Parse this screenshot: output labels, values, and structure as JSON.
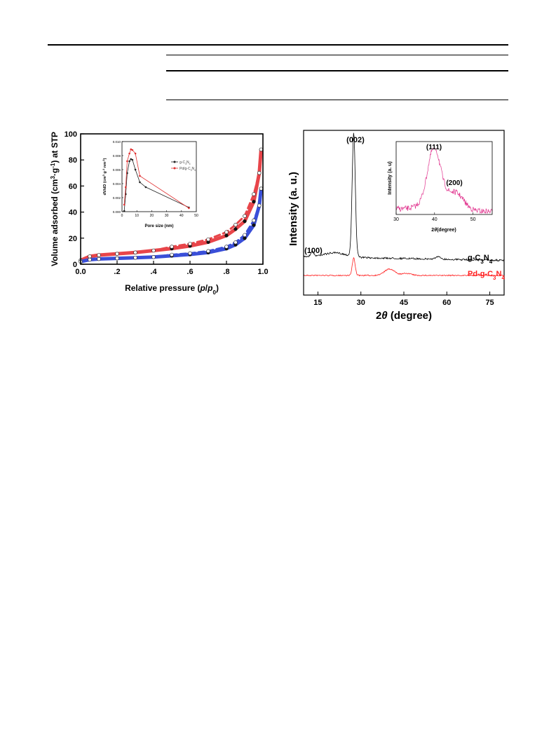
{
  "chart_data": [
    {
      "type": "line",
      "ylabel": "Volume adsorbed (cm3·g-1) at STP",
      "xlabel": "Relative pressure (p/p0)",
      "xlim": [
        0.0,
        1.0
      ],
      "ylim": [
        0,
        100
      ],
      "xticks": [
        "0.0",
        ".2",
        ".4",
        ".6",
        ".8",
        "1.0"
      ],
      "yticks": [
        "0",
        "20",
        "40",
        "60",
        "80",
        "100"
      ],
      "grid": false,
      "series": [
        {
          "name": "",
          "color": "#e8454a",
          "x": [
            0.0,
            0.05,
            0.1,
            0.2,
            0.3,
            0.4,
            0.5,
            0.6,
            0.7,
            0.8,
            0.85,
            0.9,
            0.95,
            0.98,
            0.99
          ],
          "y": [
            3,
            6,
            7,
            8,
            9,
            10.5,
            12,
            14,
            17,
            22,
            27,
            33,
            48,
            70,
            88
          ]
        },
        {
          "name": "",
          "color": "#3a4fd8",
          "x": [
            0.0,
            0.05,
            0.1,
            0.2,
            0.3,
            0.4,
            0.5,
            0.6,
            0.7,
            0.8,
            0.85,
            0.9,
            0.95,
            0.98,
            0.99
          ],
          "y": [
            2,
            3.5,
            4,
            4.5,
            5,
            5.5,
            6.5,
            7.5,
            9,
            12,
            15,
            20,
            30,
            45,
            58
          ]
        }
      ]
    },
    {
      "type": "line",
      "ylabel": "dV/dD (cm3 g-1 nm-1)",
      "xlabel": "Pore size (nm)",
      "xlim": [
        0,
        50
      ],
      "ylim": [
        0.0,
        0.01
      ],
      "xticks": [
        "0",
        "10",
        "20",
        "30",
        "40",
        "50"
      ],
      "yticks": [
        "0.000",
        "0.002",
        "0.004",
        "0.006",
        "0.008",
        "0.010"
      ],
      "legend_position": "right",
      "series": [
        {
          "name": "g-C3N4",
          "color": "#222222",
          "x": [
            1.5,
            2.5,
            3.5,
            5,
            6,
            7,
            9,
            12,
            16,
            45
          ],
          "y": [
            0.0001,
            0.0025,
            0.0055,
            0.0072,
            0.0075,
            0.0074,
            0.006,
            0.0042,
            0.0035,
            0.0006
          ]
        },
        {
          "name": "Pd/g-C3N4",
          "color": "#e03030",
          "x": [
            1.5,
            2.5,
            3.5,
            5,
            6,
            7,
            9,
            12,
            45
          ],
          "y": [
            0.001,
            0.0035,
            0.0072,
            0.0083,
            0.0089,
            0.0088,
            0.0083,
            0.0051,
            0.0005
          ]
        }
      ]
    },
    {
      "type": "line",
      "ylabel": "Intensity (a. u.)",
      "xlabel": "2θ (degree)",
      "xlim": [
        10,
        80
      ],
      "xticks": [
        "15",
        "30",
        "45",
        "60",
        "75"
      ],
      "series": [
        {
          "name": "g-C3N4",
          "color": "#000000"
        },
        {
          "name": "Pd-g-C3N4",
          "color": "#ff2020"
        }
      ],
      "annotations": [
        "(100)",
        "(002)"
      ]
    },
    {
      "type": "line",
      "ylabel": "Intensity (a. u)",
      "xlabel": "2θ (degree)",
      "xlim": [
        30,
        55
      ],
      "xticks": [
        "30",
        "40",
        "50"
      ],
      "series": [
        {
          "name": "",
          "color": "#e0308c"
        }
      ],
      "annotations": [
        "(111)",
        "(200)"
      ]
    }
  ],
  "labels": {
    "bet": {
      "y_main": "Volume adsorbed (cm",
      "y_sup1": "3",
      "y_mid": "·g",
      "y_sup2": "-1",
      "y_end": ") at STP",
      "x_main": "Relative pressure (",
      "x_p": "p",
      "x_slash": "/",
      "x_p0": "p",
      "x_sub0": "0",
      "x_end": ")"
    },
    "inset1": {
      "y_main": "dV/dD (cm",
      "y_s1": "3",
      "y_m": " g",
      "y_s2": "-1",
      "y_m2": " nm",
      "y_s3": "-1",
      "y_end": ")",
      "x": "Pore size (nm)",
      "legend1_a": "g-C",
      "legend1_b": "3",
      "legend1_c": "N",
      "legend1_d": "4",
      "legend2_a": "Pd/g-C",
      "legend2_b": "3",
      "legend2_c": "N",
      "legend2_d": "4"
    },
    "xrd": {
      "y": "Intensity (a. u.)",
      "x_theta": "θ",
      "x_pre": "2",
      "x_post": "(degree)",
      "peak100": "(100)",
      "peak002": "(002)",
      "series1_a": "g-C",
      "series1_b": "3",
      "series1_c": "N",
      "series1_d": "4",
      "series2_a": "Pd-g-C",
      "series2_b": "3",
      "series2_c": "N",
      "series2_d": "4"
    },
    "inset2": {
      "y": "Intensity (a. u)",
      "x_pre": "2",
      "x_theta": "θ",
      "x_post": "(degree)",
      "peak111": "(111)",
      "peak200": "(200)"
    }
  }
}
